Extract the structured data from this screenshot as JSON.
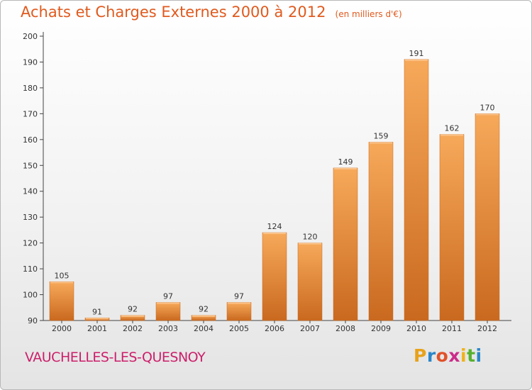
{
  "title": "Achats et Charges Externes 2000 à 2012",
  "subtitle": "(en milliers d'€)",
  "commune": "VAUCHELLES-LES-QUESNOY",
  "logo": {
    "letters": [
      "P",
      "r",
      "o",
      "x",
      "i",
      "t",
      "i"
    ],
    "colors": [
      "#e8a21a",
      "#2b86c9",
      "#e0522a",
      "#cc2b8a",
      "#f0b21a",
      "#58b030",
      "#2b86c9"
    ]
  },
  "colors": {
    "bar": "#e8893a",
    "bar_light": "#f7a95a",
    "bar_dark": "#c9691f",
    "title": "#e05a1e",
    "commune": "#cc1f6a"
  },
  "chart_data": {
    "type": "bar",
    "categories": [
      "2000",
      "2001",
      "2002",
      "2003",
      "2004",
      "2005",
      "2006",
      "2007",
      "2008",
      "2009",
      "2010",
      "2011",
      "2012"
    ],
    "values": [
      105,
      91,
      92,
      97,
      92,
      97,
      124,
      120,
      149,
      159,
      191,
      162,
      170
    ],
    "ylim": [
      90,
      200
    ],
    "yticks": [
      90,
      100,
      110,
      120,
      130,
      140,
      150,
      160,
      170,
      180,
      190,
      200
    ],
    "grid": false,
    "legend": "none"
  }
}
